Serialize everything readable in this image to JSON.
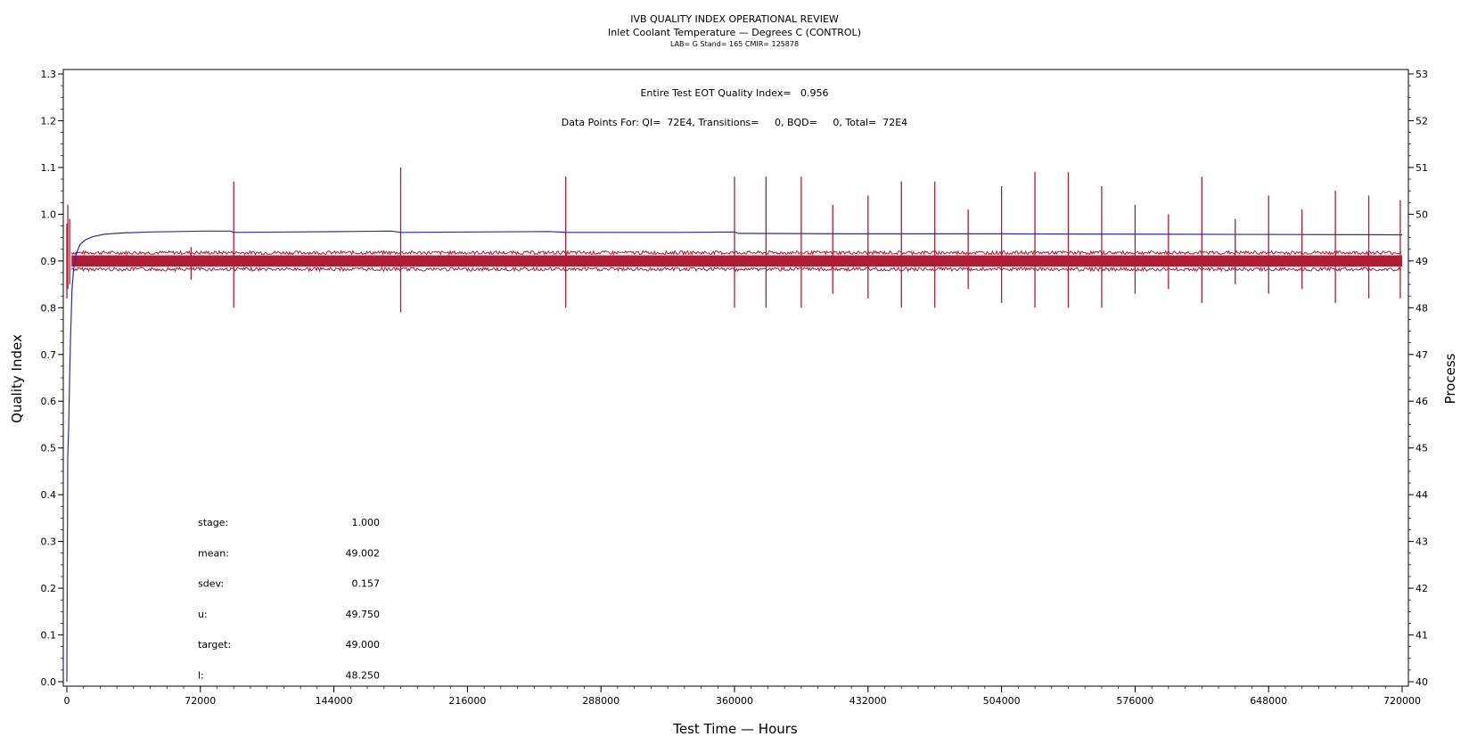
{
  "chart_data": {
    "type": "line",
    "title": "IVB QUALITY INDEX OPERATIONAL REVIEW",
    "subtitle": "Inlet Coolant Temperature — Degrees C (CONTROL)",
    "subtitle2": "LAB= G Stand= 165 CMIR= 125878",
    "annotation_qi": "Entire Test EOT Quality Index=   0.956",
    "annotation_points": "Data Points For: QI=  72E4, Transitions=     0, BQD=     0, Total=  72E4",
    "xlabel": "Test Time — Hours",
    "ylabel": "Quality Index",
    "y2label": "Process",
    "xlim": [
      0,
      720000
    ],
    "ylim": [
      0.0,
      1.31
    ],
    "y2lim": [
      40,
      53.1
    ],
    "x_ticks": [
      "0",
      "72000",
      "144000",
      "216000",
      "288000",
      "360000",
      "432000",
      "504000",
      "576000",
      "648000",
      "720000"
    ],
    "y_ticks": [
      "0.0",
      "0.1",
      "0.2",
      "0.3",
      "0.4",
      "0.5",
      "0.6",
      "0.7",
      "0.8",
      "0.9",
      "1.0",
      "1.1",
      "1.2",
      "1.3"
    ],
    "y2_ticks": [
      "40",
      "41",
      "42",
      "43",
      "44",
      "45",
      "46",
      "47",
      "48",
      "49",
      "50",
      "51",
      "52",
      "53"
    ],
    "colors": {
      "quality_index": "#2b2bb0",
      "process": "#b01c33"
    },
    "series": [
      {
        "name": "Quality Index",
        "axis": "left",
        "x": [
          0,
          500,
          1000,
          1500,
          2000,
          2800,
          3600,
          5000,
          7000,
          10000,
          14000,
          20000,
          30000,
          45000,
          60000,
          75000,
          88000,
          90000,
          120000,
          150000,
          175000,
          180000,
          220000,
          260000,
          270000,
          330000,
          360000,
          362000,
          420000,
          500000,
          600000,
          720000
        ],
        "values": [
          0.0,
          0.48,
          0.55,
          0.65,
          0.74,
          0.84,
          0.88,
          0.915,
          0.935,
          0.945,
          0.952,
          0.957,
          0.96,
          0.962,
          0.963,
          0.964,
          0.964,
          0.961,
          0.962,
          0.963,
          0.964,
          0.961,
          0.962,
          0.963,
          0.961,
          0.961,
          0.962,
          0.959,
          0.958,
          0.958,
          0.957,
          0.956
        ]
      },
      {
        "name": "Process",
        "axis": "right",
        "band_center": 49.0,
        "band_halfwidth": 0.12,
        "spikes": [
          {
            "x": 0,
            "high": 49.8,
            "low": 48.2
          },
          {
            "x": 500,
            "high": 50.2,
            "low": 48.4
          },
          {
            "x": 1500,
            "high": 49.9,
            "low": 48.5
          },
          {
            "x": 67000,
            "high": 49.3,
            "low": 48.6
          },
          {
            "x": 90000,
            "high": 50.7,
            "low": 48.0
          },
          {
            "x": 180000,
            "high": 51.0,
            "low": 47.9
          },
          {
            "x": 269000,
            "high": 50.8,
            "low": 48.0
          },
          {
            "x": 360000,
            "high": 50.8,
            "low": 48.0
          },
          {
            "x": 377000,
            "high": 50.8,
            "low": 48.0
          },
          {
            "x": 396000,
            "high": 50.8,
            "low": 48.0
          },
          {
            "x": 413000,
            "high": 50.2,
            "low": 48.3
          },
          {
            "x": 432000,
            "high": 50.4,
            "low": 48.2
          },
          {
            "x": 450000,
            "high": 50.7,
            "low": 48.0
          },
          {
            "x": 468000,
            "high": 50.7,
            "low": 48.0
          },
          {
            "x": 486000,
            "high": 50.1,
            "low": 48.4
          },
          {
            "x": 504000,
            "high": 50.6,
            "low": 48.1
          },
          {
            "x": 522000,
            "high": 50.9,
            "low": 48.0
          },
          {
            "x": 540000,
            "high": 50.9,
            "low": 48.0
          },
          {
            "x": 558000,
            "high": 50.6,
            "low": 48.0
          },
          {
            "x": 576000,
            "high": 50.2,
            "low": 48.3
          },
          {
            "x": 594000,
            "high": 50.0,
            "low": 48.4
          },
          {
            "x": 612000,
            "high": 50.8,
            "low": 48.1
          },
          {
            "x": 630000,
            "high": 49.9,
            "low": 48.5
          },
          {
            "x": 648000,
            "high": 50.4,
            "low": 48.3
          },
          {
            "x": 666000,
            "high": 50.1,
            "low": 48.4
          },
          {
            "x": 684000,
            "high": 50.5,
            "low": 48.1
          },
          {
            "x": 702000,
            "high": 50.4,
            "low": 48.2
          },
          {
            "x": 719000,
            "high": 50.3,
            "low": 48.2
          }
        ]
      }
    ],
    "stats": [
      {
        "label": "stage:",
        "value": "1.000"
      },
      {
        "label": "mean:",
        "value": "49.002"
      },
      {
        "label": "sdev:",
        "value": "0.157"
      },
      {
        "label": "u:",
        "value": "49.750"
      },
      {
        "label": "target:",
        "value": "49.000"
      },
      {
        "label": "l:",
        "value": "48.250"
      }
    ],
    "grid": false,
    "legend": "none"
  }
}
